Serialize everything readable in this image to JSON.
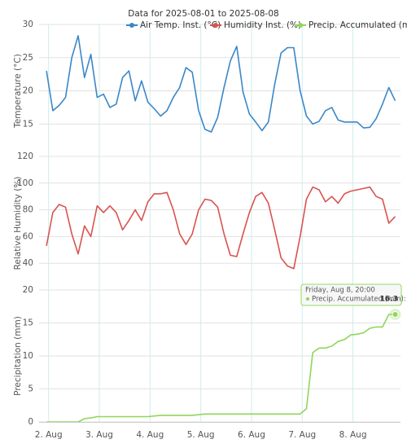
{
  "chart_data": {
    "type": "line",
    "title": "Data for 2025-08-01 to 2025-08-08",
    "x": [
      "2025-08-01T23:00",
      "2025-08-02T02:00",
      "2025-08-02T05:00",
      "2025-08-02T08:00",
      "2025-08-02T11:00",
      "2025-08-02T14:00",
      "2025-08-02T17:00",
      "2025-08-02T20:00",
      "2025-08-02T23:00",
      "2025-08-03T02:00",
      "2025-08-03T05:00",
      "2025-08-03T08:00",
      "2025-08-03T11:00",
      "2025-08-03T14:00",
      "2025-08-03T17:00",
      "2025-08-03T20:00",
      "2025-08-03T23:00",
      "2025-08-04T02:00",
      "2025-08-04T05:00",
      "2025-08-04T08:00",
      "2025-08-04T11:00",
      "2025-08-04T14:00",
      "2025-08-04T17:00",
      "2025-08-04T20:00",
      "2025-08-04T23:00",
      "2025-08-05T02:00",
      "2025-08-05T05:00",
      "2025-08-05T08:00",
      "2025-08-05T11:00",
      "2025-08-05T14:00",
      "2025-08-05T17:00",
      "2025-08-05T20:00",
      "2025-08-05T23:00",
      "2025-08-06T02:00",
      "2025-08-06T05:00",
      "2025-08-06T08:00",
      "2025-08-06T11:00",
      "2025-08-06T14:00",
      "2025-08-06T17:00",
      "2025-08-06T20:00",
      "2025-08-06T23:00",
      "2025-08-07T02:00",
      "2025-08-07T05:00",
      "2025-08-07T08:00",
      "2025-08-07T11:00",
      "2025-08-07T14:00",
      "2025-08-07T17:00",
      "2025-08-07T20:00",
      "2025-08-07T23:00",
      "2025-08-08T02:00",
      "2025-08-08T05:00",
      "2025-08-08T08:00",
      "2025-08-08T11:00",
      "2025-08-08T14:00",
      "2025-08-08T17:00",
      "2025-08-08T20:00"
    ],
    "xlim": [
      "2025-08-01T19:30",
      "2025-08-08T22:30"
    ],
    "xticks": [
      {
        "value": "2025-08-02T00:00",
        "label": "2. Aug"
      },
      {
        "value": "2025-08-03T00:00",
        "label": "3. Aug"
      },
      {
        "value": "2025-08-04T00:00",
        "label": "4. Aug"
      },
      {
        "value": "2025-08-05T00:00",
        "label": "5. Aug"
      },
      {
        "value": "2025-08-06T00:00",
        "label": "6. Aug"
      },
      {
        "value": "2025-08-07T00:00",
        "label": "7. Aug"
      },
      {
        "value": "2025-08-08T00:00",
        "label": "8. Aug"
      }
    ],
    "grid": true,
    "series": [
      {
        "name": "Air Temp. Inst. (°C)",
        "color": "#3a87c8",
        "axis_label": "Temperature (°C)",
        "ylim": [
          10,
          30
        ],
        "yticks": [
          15,
          20,
          25,
          30
        ],
        "values": [
          23,
          17,
          17.8,
          19,
          25,
          28.3,
          22,
          25.5,
          19,
          19.5,
          17.5,
          18,
          22,
          23,
          18.5,
          21.5,
          18.3,
          17.3,
          16.2,
          17,
          19,
          20.5,
          23.5,
          22.8,
          17,
          14.2,
          13.8,
          16,
          20.5,
          24.5,
          26.7,
          19.8,
          16.5,
          15.3,
          14,
          15.3,
          21,
          25.7,
          26.5,
          26.5,
          20,
          16.2,
          15,
          15.4,
          17,
          17.5,
          15.6,
          15.3,
          15.3,
          15.3,
          14.4,
          14.5,
          15.8,
          18,
          20.5,
          18.5
        ]
      },
      {
        "name": "Humidity Inst. (%)",
        "color": "#d9534f",
        "axis_label": "Relative Humidity (%)",
        "ylim": [
          20,
          120
        ],
        "yticks": [
          40,
          60,
          80,
          100,
          120
        ],
        "values": [
          53,
          78,
          84,
          82,
          62,
          47,
          68,
          60,
          83,
          78,
          83,
          78,
          65,
          72,
          80,
          72,
          86,
          92,
          92,
          93,
          80,
          62,
          54,
          62,
          80,
          88,
          87,
          82,
          62,
          46,
          45,
          62,
          78,
          90,
          93,
          85,
          65,
          44,
          38,
          36,
          60,
          88,
          97,
          95,
          86,
          90,
          85,
          92,
          94,
          95,
          96,
          97,
          90,
          88,
          70,
          75
        ]
      },
      {
        "name": "Precip. Accumulated (mm)",
        "color": "#8fd65a",
        "axis_label": "Precipitation (mm)",
        "ylim": [
          0,
          20
        ],
        "yticks": [
          0,
          5,
          10,
          15,
          20
        ],
        "values": [
          0,
          0,
          0,
          0,
          0,
          0,
          0.5,
          0.6,
          0.8,
          0.8,
          0.8,
          0.8,
          0.8,
          0.8,
          0.8,
          0.8,
          0.8,
          0.9,
          1,
          1,
          1,
          1,
          1,
          1,
          1.1,
          1.2,
          1.2,
          1.2,
          1.2,
          1.2,
          1.2,
          1.2,
          1.2,
          1.2,
          1.2,
          1.2,
          1.2,
          1.2,
          1.2,
          1.2,
          1.2,
          2,
          10.5,
          11.2,
          11.2,
          11.5,
          12.2,
          12.5,
          13.2,
          13.3,
          13.5,
          14.2,
          14.4,
          14.4,
          16.3,
          16.3
        ]
      }
    ],
    "tooltip": {
      "title": "Friday, Aug 8, 20:00",
      "label": "Precip. Accumulated (mm):"
    }
  }
}
